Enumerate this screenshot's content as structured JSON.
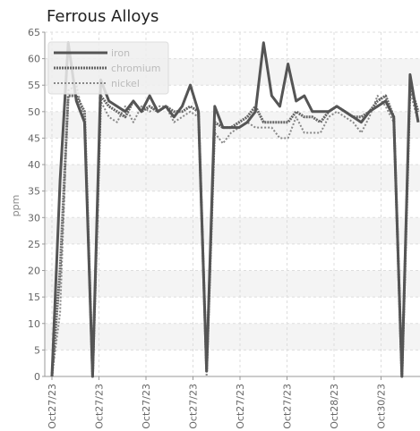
{
  "chart_data": {
    "type": "line",
    "title": "Ferrous Alloys",
    "xlabel": "",
    "ylabel": "ppm",
    "ylim": [
      0,
      65
    ],
    "yticks": [
      0,
      5,
      10,
      15,
      20,
      25,
      30,
      35,
      40,
      45,
      50,
      55,
      60,
      65
    ],
    "xtick_labels": [
      "Oct27/23",
      "Oct27/23",
      "Oct27/23",
      "Oct27/23",
      "Oct27/23",
      "Oct27/23",
      "Oct28/23",
      "Oct30/23"
    ],
    "grid": true,
    "legend_position": "top-left",
    "series": [
      {
        "name": "iron",
        "color": "#555555",
        "style": "solid",
        "values": [
          0,
          37,
          63,
          52,
          48,
          0,
          56,
          52,
          51,
          50,
          52,
          50,
          53,
          50,
          51,
          49,
          51,
          55,
          50,
          1,
          51,
          47,
          47,
          47,
          48,
          50,
          63,
          53,
          51,
          59,
          52,
          53,
          50,
          50,
          50,
          51,
          50,
          49,
          48,
          50,
          51,
          52,
          49,
          0,
          57,
          48
        ]
      },
      {
        "name": "chromium",
        "color": "#666666",
        "style": "dense",
        "values": [
          0,
          20,
          53,
          53,
          50,
          0,
          53,
          51,
          50,
          49,
          52,
          50,
          51,
          50,
          51,
          50,
          50,
          51,
          50,
          1,
          48,
          47,
          47,
          48,
          49,
          51,
          48,
          48,
          48,
          48,
          50,
          49,
          49,
          48,
          50,
          51,
          50,
          49,
          49,
          50,
          52,
          53,
          49,
          0,
          55,
          50
        ]
      },
      {
        "name": "nickel",
        "color": "#888888",
        "style": "dotted",
        "values": [
          0,
          12,
          54,
          55,
          48,
          0,
          52,
          49,
          48,
          51,
          48,
          51,
          50,
          51,
          51,
          48,
          49,
          50,
          49,
          0,
          46,
          44,
          46,
          47,
          48,
          47,
          47,
          47,
          45,
          45,
          49,
          46,
          46,
          46,
          49,
          50,
          49,
          48,
          46,
          49,
          53,
          51,
          48,
          0,
          54,
          48
        ]
      }
    ]
  }
}
